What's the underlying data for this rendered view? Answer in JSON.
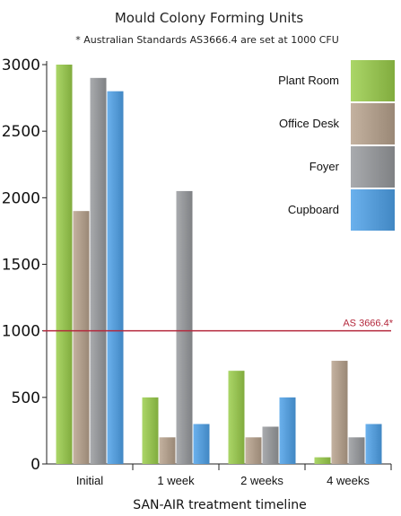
{
  "chart_data": {
    "type": "bar",
    "title": "Mould Colony Forming Units",
    "subtitle": "* Australian Standards AS3666.4 are set at 1000 CFU",
    "xlabel": "SAN-AIR treatment timeline",
    "ylabel": "",
    "categories": [
      "Initial",
      "1 week",
      "2 weeks",
      "4 weeks"
    ],
    "ylim": [
      0,
      3000
    ],
    "yticks": [
      0,
      500,
      1000,
      1500,
      2000,
      2500,
      3000
    ],
    "series": [
      {
        "name": "Plant Room",
        "values": [
          3000,
          500,
          700,
          50
        ],
        "color": "#8db84a"
      },
      {
        "name": "Office Desk",
        "values": [
          1900,
          200,
          200,
          775
        ],
        "color": "#a69482"
      },
      {
        "name": "Foyer",
        "values": [
          2900,
          2050,
          280,
          200
        ],
        "color": "#8b8d90"
      },
      {
        "name": "Cupboard",
        "values": [
          2800,
          300,
          500,
          300
        ],
        "color": "#4d93cf"
      }
    ],
    "reference_line": {
      "value": 1000,
      "label": "AS 3666.4*",
      "color": "#b4283c"
    },
    "legend_position": "top-right",
    "grid": false
  }
}
